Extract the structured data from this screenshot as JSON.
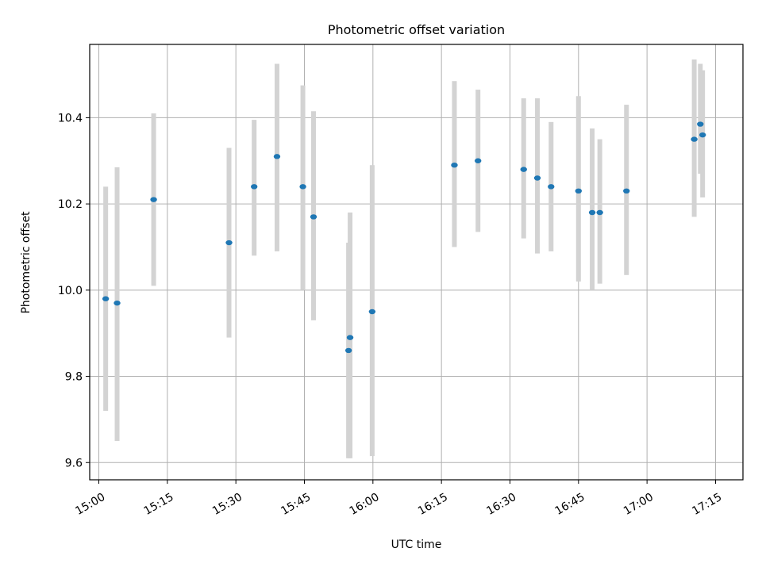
{
  "chart_data": {
    "type": "scatter",
    "title": "Photometric offset variation",
    "xlabel": "UTC time",
    "ylabel": "Photometric offset",
    "x_unit": "HH:MM",
    "xlim": [
      "14:58",
      "17:21"
    ],
    "ylim": [
      9.56,
      10.57
    ],
    "x_ticks": [
      "15:00",
      "15:15",
      "15:30",
      "15:45",
      "16:00",
      "16:15",
      "16:30",
      "16:45",
      "17:00",
      "17:15"
    ],
    "y_ticks": [
      9.6,
      9.8,
      10.0,
      10.2,
      10.4
    ],
    "y_tick_labels": [
      "9.6",
      "9.8",
      "10.0",
      "10.2",
      "10.4"
    ],
    "grid": true,
    "marker_color": "#1f77b4",
    "errorbar_color": "#d3d3d3",
    "points": [
      {
        "x": "15:01:30",
        "y": 9.98,
        "y_low": 9.72,
        "y_high": 10.24
      },
      {
        "x": "15:04:00",
        "y": 9.97,
        "y_low": 9.65,
        "y_high": 10.285
      },
      {
        "x": "15:12:00",
        "y": 10.21,
        "y_low": 10.01,
        "y_high": 10.41
      },
      {
        "x": "15:28:30",
        "y": 10.11,
        "y_low": 9.89,
        "y_high": 10.33
      },
      {
        "x": "15:34:00",
        "y": 10.24,
        "y_low": 10.08,
        "y_high": 10.395
      },
      {
        "x": "15:39:00",
        "y": 10.31,
        "y_low": 10.09,
        "y_high": 10.525
      },
      {
        "x": "15:44:40",
        "y": 10.24,
        "y_low": 10.0,
        "y_high": 10.475
      },
      {
        "x": "15:47:00",
        "y": 10.17,
        "y_low": 9.93,
        "y_high": 10.415
      },
      {
        "x": "15:55:00",
        "y": 9.89,
        "y_low": 9.61,
        "y_high": 10.18
      },
      {
        "x": "15:54:40",
        "y": 9.86,
        "y_low": 9.61,
        "y_high": 10.11
      },
      {
        "x": "15:59:50",
        "y": 9.95,
        "y_low": 9.615,
        "y_high": 10.29
      },
      {
        "x": "16:17:50",
        "y": 10.29,
        "y_low": 10.1,
        "y_high": 10.485
      },
      {
        "x": "16:23:00",
        "y": 10.3,
        "y_low": 10.135,
        "y_high": 10.465
      },
      {
        "x": "16:33:00",
        "y": 10.28,
        "y_low": 10.12,
        "y_high": 10.445
      },
      {
        "x": "16:36:00",
        "y": 10.26,
        "y_low": 10.085,
        "y_high": 10.445
      },
      {
        "x": "16:39:00",
        "y": 10.24,
        "y_low": 10.09,
        "y_high": 10.39
      },
      {
        "x": "16:45:00",
        "y": 10.23,
        "y_low": 10.02,
        "y_high": 10.45
      },
      {
        "x": "16:48:00",
        "y": 10.18,
        "y_low": 10.0,
        "y_high": 10.375
      },
      {
        "x": "16:49:40",
        "y": 10.18,
        "y_low": 10.015,
        "y_high": 10.35
      },
      {
        "x": "16:55:30",
        "y": 10.23,
        "y_low": 10.035,
        "y_high": 10.43
      },
      {
        "x": "17:10:20",
        "y": 10.35,
        "y_low": 10.17,
        "y_high": 10.535
      },
      {
        "x": "17:11:40",
        "y": 10.385,
        "y_low": 10.27,
        "y_high": 10.525
      },
      {
        "x": "17:12:10",
        "y": 10.36,
        "y_low": 10.215,
        "y_high": 10.51
      }
    ]
  }
}
